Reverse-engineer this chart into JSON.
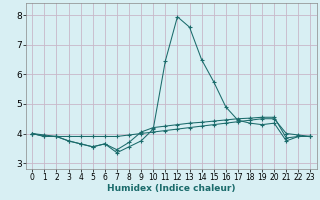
{
  "xlabel": "Humidex (Indice chaleur)",
  "xlim": [
    -0.5,
    23.5
  ],
  "ylim": [
    2.8,
    8.4
  ],
  "yticks": [
    3,
    4,
    5,
    6,
    7,
    8
  ],
  "xticks": [
    0,
    1,
    2,
    3,
    4,
    5,
    6,
    7,
    8,
    9,
    10,
    11,
    12,
    13,
    14,
    15,
    16,
    17,
    18,
    19,
    20,
    21,
    22,
    23
  ],
  "bg_color": "#d8eff3",
  "plot_bg_color": "#d8eff3",
  "line_color": "#1a6b6b",
  "grid_color": "#c8b8c8",
  "line1_x": [
    0,
    1,
    2,
    3,
    4,
    5,
    6,
    7,
    8,
    9,
    10,
    11,
    12,
    13,
    14,
    15,
    16,
    17,
    18,
    19,
    20,
    21,
    22,
    23
  ],
  "line1_y": [
    4.0,
    3.9,
    3.9,
    3.75,
    3.65,
    3.55,
    3.65,
    3.35,
    3.55,
    3.75,
    4.15,
    6.45,
    7.95,
    7.6,
    6.5,
    5.75,
    4.9,
    4.45,
    4.35,
    4.3,
    4.35,
    3.75,
    3.9,
    3.9
  ],
  "line2_x": [
    0,
    1,
    2,
    3,
    4,
    5,
    6,
    7,
    8,
    9,
    10,
    11,
    12,
    13,
    14,
    15,
    16,
    17,
    18,
    19,
    20,
    21,
    22,
    23
  ],
  "line2_y": [
    4.0,
    3.95,
    3.9,
    3.9,
    3.9,
    3.9,
    3.9,
    3.9,
    3.95,
    4.0,
    4.05,
    4.1,
    4.15,
    4.2,
    4.25,
    4.3,
    4.35,
    4.4,
    4.45,
    4.5,
    4.5,
    4.0,
    3.95,
    3.9
  ],
  "line3_x": [
    0,
    1,
    2,
    3,
    4,
    5,
    6,
    7,
    8,
    9,
    10,
    11,
    12,
    13,
    14,
    15,
    16,
    17,
    18,
    19,
    20,
    21,
    22,
    23
  ],
  "line3_y": [
    4.0,
    3.9,
    3.9,
    3.75,
    3.65,
    3.55,
    3.65,
    3.45,
    3.7,
    4.05,
    4.2,
    4.25,
    4.3,
    4.35,
    4.38,
    4.42,
    4.46,
    4.5,
    4.52,
    4.55,
    4.55,
    3.85,
    3.9,
    3.9
  ]
}
